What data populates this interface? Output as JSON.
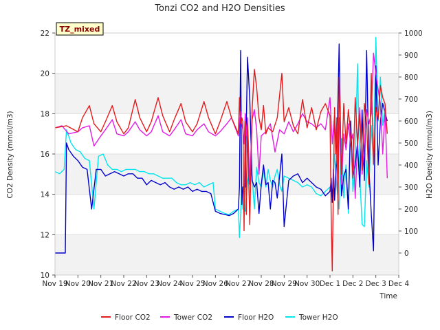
{
  "chart_data": {
    "type": "line",
    "title": "Tonzi CO2 and H2O Densities",
    "xlabel": "Time",
    "ylabel_left": "CO2 Density (mmol/m3)",
    "ylabel_right": "H2O Density (mmol/m3)",
    "annotation": "TZ_mixed",
    "x_ticks": [
      "Nov 19",
      "Nov 20",
      "Nov 21",
      "Nov 22",
      "Nov 23",
      "Nov 24",
      "Nov 25",
      "Nov 26",
      "Nov 27",
      "Nov 28",
      "Nov 29",
      "Nov 30",
      "Dec 1",
      "Dec 2",
      "Dec 3",
      "Dec 4"
    ],
    "xlim": [
      0,
      15
    ],
    "ylim_left": [
      10,
      22
    ],
    "left_ticks": [
      "10",
      "12",
      "14",
      "16",
      "18",
      "20",
      "22"
    ],
    "ylim_right": [
      -100,
      1000
    ],
    "right_ticks": [
      "0",
      "100",
      "200",
      "300",
      "400",
      "500",
      "600",
      "700",
      "800",
      "900",
      "1000"
    ],
    "x_units": "days since Nov 19",
    "legend_position": "bottom",
    "colors": {
      "floor_co2": "#e31a1c",
      "tower_co2": "#e31ae3",
      "floor_h2o": "#0000cc",
      "tower_h2o": "#00e5ee",
      "band": "#f2f2f2",
      "annot_bg": "#ffffcc"
    },
    "series": [
      {
        "name": "Floor CO2",
        "axis": "left",
        "color_key": "floor_co2",
        "x": [
          0.0,
          0.5,
          1.0,
          1.2,
          1.5,
          1.7,
          2.0,
          2.2,
          2.5,
          2.7,
          3.0,
          3.2,
          3.5,
          3.7,
          4.0,
          4.2,
          4.5,
          4.7,
          5.0,
          5.2,
          5.5,
          5.7,
          6.0,
          6.2,
          6.5,
          6.7,
          7.0,
          7.2,
          7.5,
          7.7,
          8.0,
          8.05,
          8.1,
          8.15,
          8.2,
          8.25,
          8.3,
          8.35,
          8.4,
          8.5,
          8.6,
          8.7,
          8.8,
          8.9,
          9.0,
          9.1,
          9.2,
          9.3,
          9.4,
          9.5,
          9.7,
          9.9,
          10.0,
          10.2,
          10.4,
          10.6,
          10.8,
          11.0,
          11.2,
          11.4,
          11.6,
          11.8,
          12.0,
          12.05,
          12.1,
          12.15,
          12.2,
          12.25,
          12.3,
          12.35,
          12.4,
          12.5,
          12.6,
          12.7,
          12.8,
          12.9,
          13.0,
          13.1,
          13.2,
          13.3,
          13.4,
          13.5,
          13.6,
          13.7,
          13.8,
          13.9,
          14.0,
          14.1,
          14.2,
          14.3,
          14.4,
          14.5
        ],
        "values": [
          17.3,
          17.4,
          17.1,
          17.8,
          18.4,
          17.5,
          17.1,
          17.6,
          18.4,
          17.6,
          17.0,
          17.3,
          18.7,
          17.8,
          17.1,
          17.6,
          18.8,
          17.9,
          17.1,
          17.7,
          18.5,
          17.6,
          17.1,
          17.5,
          18.6,
          17.8,
          17.0,
          17.6,
          18.6,
          17.8,
          17.0,
          18.8,
          17.5,
          17.8,
          17.6,
          12.2,
          17.6,
          13.0,
          17.5,
          12.5,
          18.2,
          20.2,
          19.3,
          17.8,
          17.2,
          18.4,
          17.0,
          17.3,
          17.2,
          17.1,
          17.8,
          20.0,
          17.6,
          18.3,
          17.4,
          17.0,
          18.7,
          17.3,
          18.3,
          17.2,
          18.1,
          18.5,
          17.9,
          13.0,
          10.2,
          14.5,
          18.3,
          16.0,
          17.8,
          13.0,
          19.8,
          15.0,
          18.5,
          16.5,
          18.2,
          17.0,
          14.8,
          18.8,
          16.5,
          18.0,
          15.2,
          18.5,
          17.5,
          14.5,
          20.0,
          15.5,
          18.3,
          17.7,
          19.4,
          18.8,
          18.5,
          17.0
        ]
      },
      {
        "name": "Tower CO2",
        "axis": "left",
        "color_key": "tower_co2",
        "x": [
          0.0,
          0.3,
          0.6,
          1.0,
          1.2,
          1.5,
          1.7,
          2.0,
          2.2,
          2.5,
          2.7,
          3.0,
          3.2,
          3.5,
          3.7,
          4.0,
          4.2,
          4.5,
          4.7,
          5.0,
          5.2,
          5.5,
          5.7,
          6.0,
          6.2,
          6.5,
          6.7,
          7.0,
          7.2,
          7.5,
          7.7,
          8.0,
          8.05,
          8.1,
          8.15,
          8.2,
          8.25,
          8.3,
          8.35,
          8.4,
          8.5,
          8.6,
          8.7,
          8.8,
          8.9,
          9.0,
          9.2,
          9.4,
          9.6,
          9.8,
          10.0,
          10.2,
          10.4,
          10.6,
          10.8,
          11.0,
          11.2,
          11.4,
          11.6,
          11.8,
          12.0,
          12.1,
          12.2,
          12.3,
          12.4,
          12.5,
          12.6,
          12.7,
          12.8,
          12.9,
          13.0,
          13.1,
          13.2,
          13.3,
          13.4,
          13.5,
          13.6,
          13.7,
          13.8,
          13.9,
          14.0,
          14.1,
          14.2,
          14.3,
          14.4,
          14.5
        ],
        "values": [
          17.3,
          17.4,
          17.0,
          17.1,
          17.3,
          17.4,
          16.4,
          16.9,
          17.2,
          17.7,
          17.0,
          16.9,
          17.1,
          17.6,
          17.2,
          16.9,
          17.1,
          17.9,
          17.1,
          16.9,
          17.2,
          17.7,
          17.0,
          16.9,
          17.2,
          17.5,
          17.1,
          16.9,
          17.1,
          17.5,
          17.8,
          16.9,
          17.6,
          18.1,
          17.5,
          17.2,
          16.5,
          18.0,
          16.9,
          17.8,
          14.5,
          17.7,
          18.2,
          17.2,
          15.0,
          16.9,
          17.1,
          17.5,
          16.1,
          17.2,
          17.0,
          17.6,
          17.1,
          17.5,
          18.0,
          17.6,
          17.5,
          17.3,
          17.5,
          17.2,
          18.8,
          16.5,
          18.0,
          15.5,
          17.8,
          14.5,
          17.0,
          16.2,
          17.5,
          16.5,
          17.0,
          13.8,
          16.5,
          18.3,
          15.0,
          16.5,
          18.2,
          17.5,
          18.0,
          21.0,
          20.0,
          19.2,
          18.5,
          16.0,
          18.2,
          14.8
        ]
      },
      {
        "name": "Floor H2O",
        "axis": "right",
        "color_key": "floor_h2o",
        "x": [
          0.0,
          0.3,
          0.45,
          0.5,
          0.6,
          0.8,
          1.0,
          1.2,
          1.4,
          1.6,
          1.8,
          2.0,
          2.2,
          2.4,
          2.6,
          2.8,
          3.0,
          3.2,
          3.4,
          3.6,
          3.8,
          4.0,
          4.2,
          4.4,
          4.6,
          4.8,
          5.0,
          5.2,
          5.4,
          5.6,
          5.8,
          6.0,
          6.2,
          6.4,
          6.6,
          6.8,
          7.0,
          7.2,
          7.4,
          7.6,
          7.8,
          8.0,
          8.05,
          8.1,
          8.15,
          8.2,
          8.3,
          8.4,
          8.5,
          8.6,
          8.7,
          8.8,
          8.9,
          9.0,
          9.1,
          9.2,
          9.3,
          9.4,
          9.5,
          9.6,
          9.7,
          9.8,
          9.9,
          10.0,
          10.2,
          10.4,
          10.6,
          10.8,
          11.0,
          11.2,
          11.4,
          11.6,
          11.8,
          11.9,
          12.0,
          12.05,
          12.1,
          12.15,
          12.2,
          12.3,
          12.4,
          12.5,
          12.6,
          12.7,
          12.8,
          12.9,
          13.0,
          13.1,
          13.2,
          13.3,
          13.4,
          13.5,
          13.6,
          13.7,
          13.8,
          13.9,
          14.0,
          14.1,
          14.2,
          14.3,
          14.4,
          14.5
        ],
        "values": [
          0,
          0,
          0,
          500,
          470,
          440,
          420,
          390,
          380,
          200,
          380,
          380,
          350,
          360,
          370,
          360,
          350,
          360,
          360,
          340,
          340,
          310,
          330,
          320,
          310,
          320,
          300,
          290,
          300,
          290,
          300,
          280,
          290,
          280,
          280,
          270,
          190,
          180,
          175,
          170,
          180,
          200,
          300,
          920,
          220,
          300,
          300,
          890,
          700,
          330,
          300,
          320,
          180,
          310,
          400,
          310,
          320,
          200,
          330,
          320,
          250,
          350,
          450,
          120,
          330,
          350,
          360,
          320,
          340,
          320,
          300,
          290,
          260,
          270,
          280,
          340,
          230,
          380,
          240,
          450,
          950,
          260,
          350,
          380,
          200,
          600,
          350,
          400,
          500,
          300,
          650,
          330,
          920,
          380,
          180,
          10,
          850,
          400,
          600,
          680,
          640,
          600
        ]
      },
      {
        "name": "Tower H2O",
        "axis": "right",
        "color_key": "tower_h2o",
        "x": [
          0.0,
          0.2,
          0.4,
          0.5,
          0.7,
          0.9,
          1.1,
          1.3,
          1.5,
          1.7,
          1.9,
          2.1,
          2.3,
          2.5,
          2.7,
          2.9,
          3.1,
          3.3,
          3.5,
          3.7,
          3.9,
          4.1,
          4.3,
          4.5,
          4.7,
          4.9,
          5.1,
          5.3,
          5.5,
          5.7,
          5.9,
          6.1,
          6.3,
          6.5,
          6.7,
          6.9,
          7.0,
          7.2,
          7.4,
          7.6,
          7.8,
          8.0,
          8.05,
          8.1,
          8.15,
          8.2,
          8.3,
          8.4,
          8.5,
          8.6,
          8.7,
          8.8,
          8.9,
          9.0,
          9.1,
          9.2,
          9.3,
          9.4,
          9.5,
          9.6,
          9.7,
          9.8,
          9.9,
          10.0,
          10.2,
          10.4,
          10.6,
          10.8,
          11.0,
          11.2,
          11.4,
          11.6,
          11.8,
          12.0,
          12.1,
          12.2,
          12.3,
          12.4,
          12.5,
          12.6,
          12.7,
          12.8,
          12.9,
          13.0,
          13.1,
          13.2,
          13.3,
          13.4,
          13.5,
          13.6,
          13.7,
          13.8,
          13.9,
          14.0,
          14.1,
          14.2,
          14.3,
          14.4
        ],
        "values": [
          370,
          360,
          380,
          560,
          500,
          470,
          460,
          430,
          420,
          200,
          440,
          450,
          400,
          380,
          380,
          370,
          380,
          380,
          380,
          370,
          370,
          360,
          360,
          350,
          340,
          340,
          340,
          320,
          310,
          310,
          320,
          310,
          320,
          300,
          310,
          320,
          200,
          190,
          180,
          175,
          190,
          200,
          70,
          180,
          300,
          200,
          190,
          320,
          380,
          350,
          200,
          390,
          320,
          300,
          380,
          300,
          380,
          330,
          300,
          350,
          380,
          310,
          280,
          350,
          340,
          330,
          320,
          300,
          310,
          300,
          270,
          260,
          280,
          300,
          250,
          450,
          300,
          200,
          520,
          250,
          400,
          180,
          600,
          280,
          400,
          860,
          350,
          130,
          120,
          420,
          300,
          580,
          400,
          980,
          600,
          800,
          580,
          650
        ]
      }
    ]
  }
}
